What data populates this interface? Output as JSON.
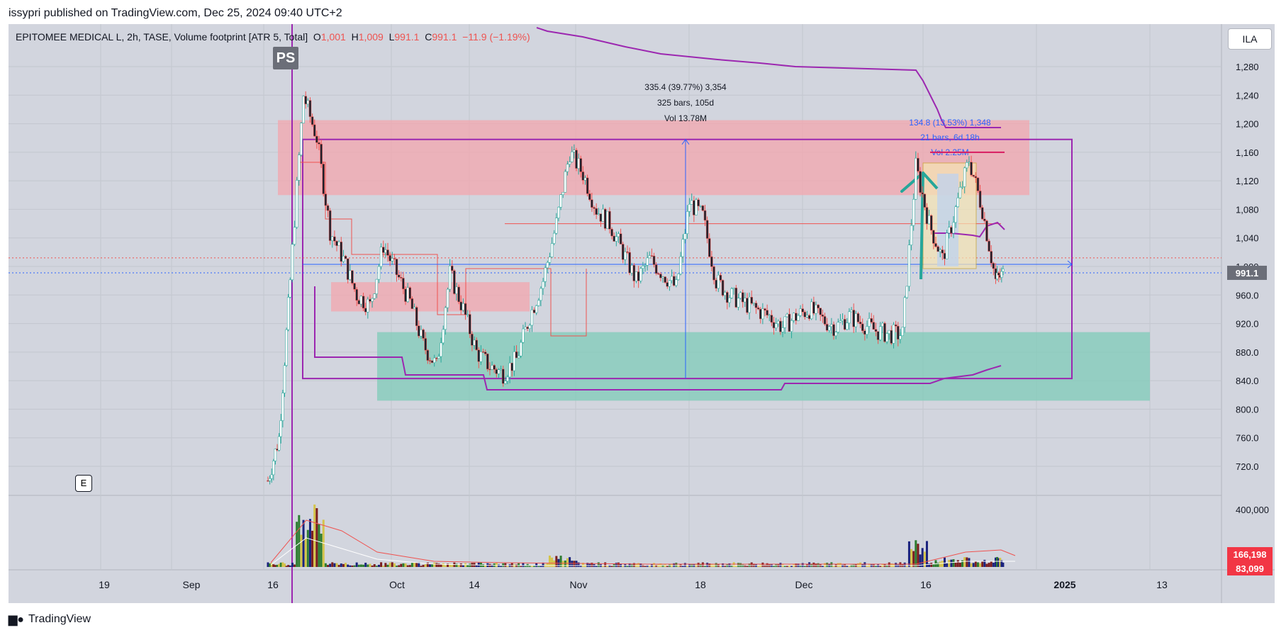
{
  "publisher_line": "issypri published on TradingView.com, Dec 25, 2024 09:40 UTC+2",
  "legend": {
    "symbol": "EPITOMEE MEDICAL L, 2h, TASE, Volume footprint [ATR 5, Total]",
    "o_label": "O",
    "o_value": "1,001",
    "h_label": "H",
    "h_value": "1,009",
    "l_label": "L",
    "l_value": "991.1",
    "c_label": "C",
    "c_value": "991.1",
    "change": "−11.9 (−1.19%)"
  },
  "currency_button": "ILA",
  "badges": {
    "ps": "PS",
    "e": "E"
  },
  "footer": {
    "logo_text": "TradingView"
  },
  "colors": {
    "background": "#d2d5de",
    "up": "#26a69a",
    "down": "#ef5350",
    "resistance_zone": "#f3a5ad",
    "support_zone": "#7fcbb8",
    "range_box": "#9c27b0",
    "measure_line": "#2962ff",
    "arrow": "#26a69a"
  },
  "chart_data": {
    "type": "candlestick",
    "price_axis": {
      "ticks": [
        "1,280",
        "1,240",
        "1,200",
        "1,160",
        "1,120",
        "1,080",
        "1,040",
        "1,000",
        "960.0",
        "920.0",
        "880.0",
        "840.0",
        "800.0",
        "760.0",
        "720.0"
      ],
      "tick_values": [
        1280,
        1240,
        1200,
        1160,
        1120,
        1080,
        1040,
        1000,
        960,
        920,
        880,
        840,
        800,
        760,
        720
      ],
      "last_price_label": "991.1",
      "last_price": 991.1
    },
    "volume_axis": {
      "ticks": [
        "400,000"
      ],
      "tick_values": [
        400000
      ],
      "labels": [
        "166,198",
        "83,099"
      ],
      "label_values": [
        166198,
        83099
      ]
    },
    "time_axis": {
      "labels": [
        "19",
        "Sep",
        "16",
        "Oct",
        "14",
        "Nov",
        "18",
        "Dec",
        "16",
        "2025",
        "13"
      ],
      "bold": "2025"
    },
    "annotations": [
      {
        "lines": [
          "335.4 (39.77%) 3,354",
          "325 bars, 105d",
          "Vol 13.78M"
        ]
      },
      {
        "lines": [
          "134.8 (13.53%) 1,348",
          "21 bars, 6d 18h",
          "Vol 2.25M"
        ]
      }
    ],
    "zones": [
      {
        "name": "resistance",
        "from": 1100,
        "to": 1205
      },
      {
        "name": "mid-resistance",
        "from": 937,
        "to": 978
      },
      {
        "name": "support",
        "from": 812,
        "to": 908
      }
    ],
    "price_path": [
      {
        "x": 0.0,
        "p": 700
      },
      {
        "x": 0.5,
        "p": 760
      },
      {
        "x": 1.0,
        "p": 980
      },
      {
        "x": 1.6,
        "p": 1240
      },
      {
        "x": 2.2,
        "p": 1180
      },
      {
        "x": 2.8,
        "p": 1050
      },
      {
        "x": 3.4,
        "p": 1010
      },
      {
        "x": 4.0,
        "p": 960
      },
      {
        "x": 4.6,
        "p": 945
      },
      {
        "x": 5.2,
        "p": 1030
      },
      {
        "x": 5.8,
        "p": 990
      },
      {
        "x": 6.4,
        "p": 950
      },
      {
        "x": 7.0,
        "p": 890
      },
      {
        "x": 7.6,
        "p": 860
      },
      {
        "x": 8.2,
        "p": 990
      },
      {
        "x": 8.8,
        "p": 940
      },
      {
        "x": 9.4,
        "p": 880
      },
      {
        "x": 10.0,
        "p": 860
      },
      {
        "x": 10.6,
        "p": 850
      },
      {
        "x": 11.2,
        "p": 870
      },
      {
        "x": 11.8,
        "p": 930
      },
      {
        "x": 12.4,
        "p": 980
      },
      {
        "x": 13.0,
        "p": 1060
      },
      {
        "x": 13.6,
        "p": 1160
      },
      {
        "x": 14.2,
        "p": 1130
      },
      {
        "x": 14.8,
        "p": 1080
      },
      {
        "x": 15.4,
        "p": 1060
      },
      {
        "x": 16.0,
        "p": 1020
      },
      {
        "x": 16.6,
        "p": 980
      },
      {
        "x": 17.2,
        "p": 1010
      },
      {
        "x": 17.8,
        "p": 990
      },
      {
        "x": 18.4,
        "p": 970
      },
      {
        "x": 19.0,
        "p": 1090
      },
      {
        "x": 19.6,
        "p": 1070
      },
      {
        "x": 20.2,
        "p": 980
      },
      {
        "x": 20.8,
        "p": 960
      },
      {
        "x": 21.4,
        "p": 950
      },
      {
        "x": 22.0,
        "p": 940
      },
      {
        "x": 22.6,
        "p": 930
      },
      {
        "x": 23.2,
        "p": 915
      },
      {
        "x": 23.8,
        "p": 930
      },
      {
        "x": 24.4,
        "p": 940
      },
      {
        "x": 25.0,
        "p": 925
      },
      {
        "x": 25.6,
        "p": 915
      },
      {
        "x": 26.2,
        "p": 930
      },
      {
        "x": 26.8,
        "p": 920
      },
      {
        "x": 27.4,
        "p": 910
      },
      {
        "x": 28.0,
        "p": 905
      },
      {
        "x": 28.6,
        "p": 905
      },
      {
        "x": 29.2,
        "p": 1140
      },
      {
        "x": 29.8,
        "p": 1060
      },
      {
        "x": 30.4,
        "p": 1010
      },
      {
        "x": 31.0,
        "p": 1080
      },
      {
        "x": 31.6,
        "p": 1150
      },
      {
        "x": 32.2,
        "p": 1080
      },
      {
        "x": 32.8,
        "p": 980
      },
      {
        "x": 33.2,
        "p": 991
      }
    ]
  }
}
